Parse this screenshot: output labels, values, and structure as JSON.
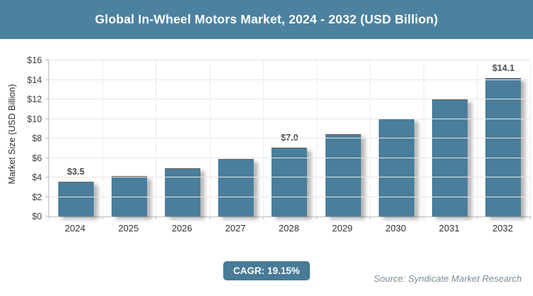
{
  "header": {
    "title": "Global In-Wheel Motors Market, 2024 - 2032 (USD Billion)",
    "bg": "#4C82A0"
  },
  "chart_data": {
    "type": "bar",
    "title": "Global In-Wheel Motors Market, 2024 - 2032 (USD Billion)",
    "categories": [
      "2024",
      "2025",
      "2026",
      "2027",
      "2028",
      "2029",
      "2030",
      "2031",
      "2032"
    ],
    "values": [
      3.5,
      4.1,
      4.9,
      5.8,
      7.0,
      8.4,
      10.0,
      11.9,
      14.1
    ],
    "bar_labels": [
      "$3.5",
      "",
      "",
      "",
      "$7.0",
      "",
      "",
      "",
      "$14.1"
    ],
    "xlabel": "",
    "ylabel": "Market Size (USD Billion)",
    "ylim": [
      0,
      16
    ],
    "ytick_step": 2,
    "ytick_labels": [
      "$0",
      "$2",
      "$4",
      "$6",
      "$8",
      "$10",
      "$12",
      "$14",
      "$16"
    ],
    "grid": true,
    "legend": "none",
    "bar_color": "#4A7E9C"
  },
  "footer": {
    "cagr_label": "CAGR: 19.15%",
    "cagr_bg": "#487B97",
    "source": "Source: Syndicate Market Research"
  }
}
